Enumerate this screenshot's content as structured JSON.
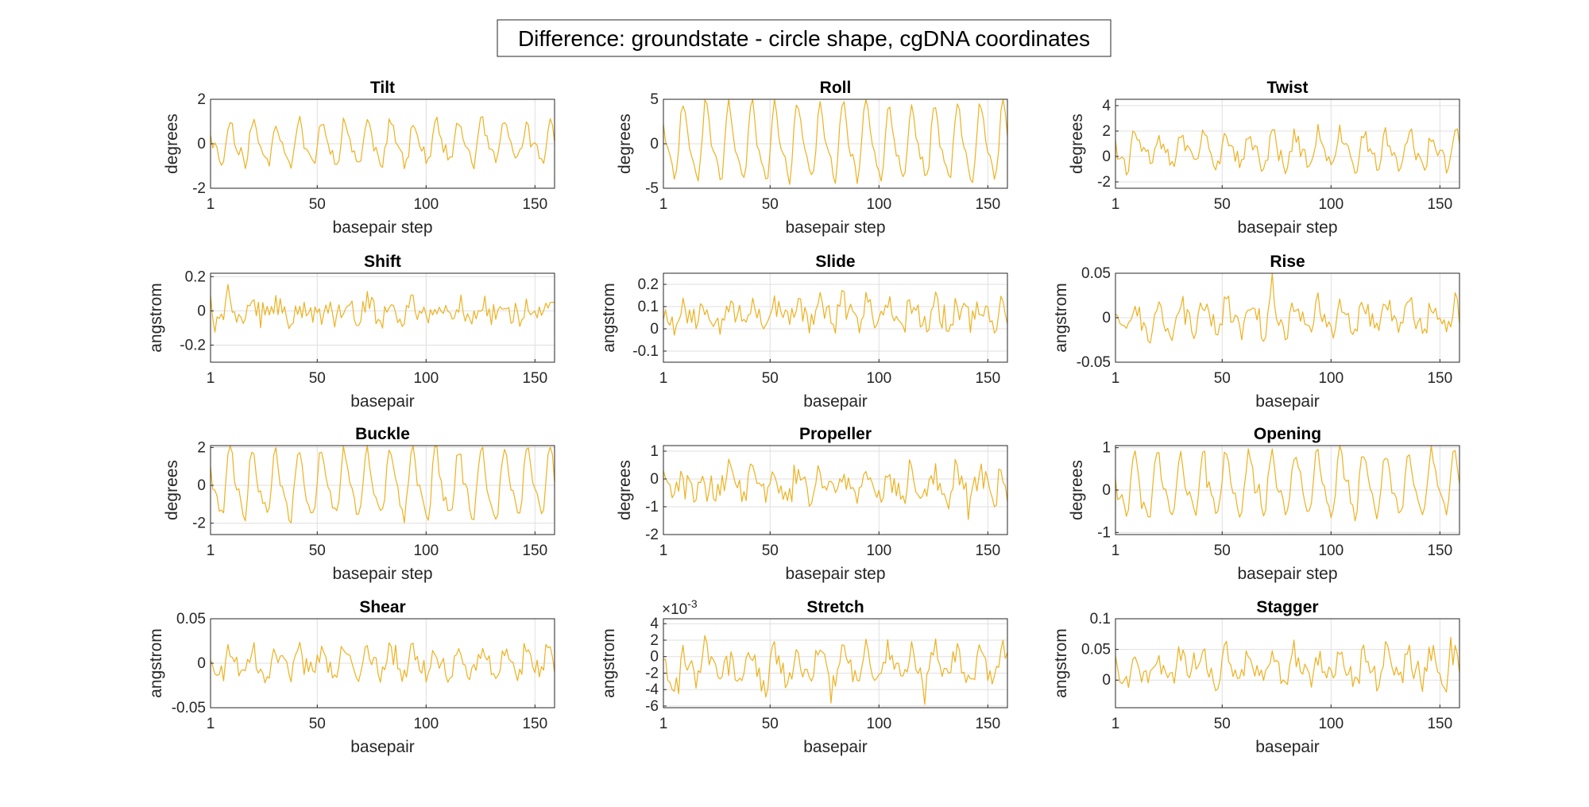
{
  "figure_title": "Difference: groundstate - circle shape, cgDNA coordinates",
  "colors": {
    "series": "#EDB120",
    "grid": "#dfdfdf",
    "axis": "#262626"
  },
  "chart_data": [
    {
      "type": "line",
      "title": "Tilt",
      "xlabel": "basepair step",
      "ylabel": "degrees",
      "xlim": [
        1,
        159
      ],
      "ylim": [
        -2,
        2
      ],
      "xticks": [
        "1",
        "50",
        "100",
        "150"
      ],
      "yticks": [
        "-2",
        "0",
        "2"
      ],
      "ytick_values": [
        -2,
        0,
        2
      ],
      "pattern": {
        "period": 10.5,
        "amplitude": 0.8,
        "noise": 0.3,
        "offset": 0.0,
        "seed": 11
      }
    },
    {
      "type": "line",
      "title": "Roll",
      "xlabel": "basepair step",
      "ylabel": "degrees",
      "xlim": [
        1,
        159
      ],
      "ylim": [
        -5,
        5
      ],
      "xticks": [
        "1",
        "50",
        "100",
        "150"
      ],
      "yticks": [
        "-5",
        "0",
        "5"
      ],
      "ytick_values": [
        -5,
        0,
        5
      ],
      "pattern": {
        "period": 10.5,
        "amplitude": 3.8,
        "noise": 0.6,
        "offset": 0.0,
        "seed": 23
      }
    },
    {
      "type": "line",
      "title": "Twist",
      "xlabel": "basepair step",
      "ylabel": "degrees",
      "xlim": [
        1,
        159
      ],
      "ylim": [
        -2.5,
        4.5
      ],
      "xticks": [
        "1",
        "50",
        "100",
        "150"
      ],
      "yticks": [
        "-2",
        "0",
        "2",
        "4"
      ],
      "ytick_values": [
        -2,
        0,
        2,
        4
      ],
      "pattern": {
        "period": 10.5,
        "amplitude": 1.2,
        "noise": 0.7,
        "offset": 0.4,
        "seed": 37
      }
    },
    {
      "type": "line",
      "title": "Shift",
      "xlabel": "basepair",
      "ylabel": "angstrom",
      "xlim": [
        1,
        159
      ],
      "ylim": [
        -0.3,
        0.22
      ],
      "xticks": [
        "1",
        "50",
        "100",
        "150"
      ],
      "yticks": [
        "-0.2",
        "0",
        "0.2"
      ],
      "ytick_values": [
        -0.2,
        0,
        0.2
      ],
      "pattern": {
        "period": 10.5,
        "amplitude": 0.04,
        "noise": 0.07,
        "offset": 0.0,
        "seed": 41
      }
    },
    {
      "type": "line",
      "title": "Slide",
      "xlabel": "basepair",
      "ylabel": "angstrom",
      "xlim": [
        1,
        159
      ],
      "ylim": [
        -0.15,
        0.25
      ],
      "xticks": [
        "1",
        "50",
        "100",
        "150"
      ],
      "yticks": [
        "-0.1",
        "0",
        "0.1",
        "0.2"
      ],
      "ytick_values": [
        -0.1,
        0,
        0.1,
        0.2
      ],
      "pattern": {
        "period": 10.5,
        "amplitude": 0.04,
        "noise": 0.06,
        "offset": 0.07,
        "seed": 53
      }
    },
    {
      "type": "line",
      "title": "Rise",
      "xlabel": "basepair",
      "ylabel": "angstrom",
      "xlim": [
        1,
        159
      ],
      "ylim": [
        -0.05,
        0.05
      ],
      "xticks": [
        "1",
        "50",
        "100",
        "150"
      ],
      "yticks": [
        "-0.05",
        "0",
        "0.05"
      ],
      "ytick_values": [
        -0.05,
        0,
        0.05
      ],
      "pattern": {
        "period": 10.5,
        "amplitude": 0.015,
        "noise": 0.012,
        "offset": 0.0,
        "seed": 67
      }
    },
    {
      "type": "line",
      "title": "Buckle",
      "xlabel": "basepair step",
      "ylabel": "degrees",
      "xlim": [
        1,
        159
      ],
      "ylim": [
        -2.6,
        2.1
      ],
      "xticks": [
        "1",
        "50",
        "100",
        "150"
      ],
      "yticks": [
        "-2",
        "0",
        "2"
      ],
      "ytick_values": [
        -2,
        0,
        2
      ],
      "pattern": {
        "period": 10.5,
        "amplitude": 1.6,
        "noise": 0.4,
        "offset": 0.0,
        "seed": 71
      }
    },
    {
      "type": "line",
      "title": "Propeller",
      "xlabel": "basepair step",
      "ylabel": "degrees",
      "xlim": [
        1,
        159
      ],
      "ylim": [
        -2,
        1.2
      ],
      "xticks": [
        "1",
        "50",
        "100",
        "150"
      ],
      "yticks": [
        "-2",
        "-1",
        "0",
        "1"
      ],
      "ytick_values": [
        -2,
        -1,
        0,
        1
      ],
      "pattern": {
        "period": 10.5,
        "amplitude": 0.4,
        "noise": 0.5,
        "offset": -0.2,
        "seed": 83
      }
    },
    {
      "type": "line",
      "title": "Opening",
      "xlabel": "basepair step",
      "ylabel": "degrees",
      "xlim": [
        1,
        159
      ],
      "ylim": [
        -1.05,
        1.05
      ],
      "xticks": [
        "1",
        "50",
        "100",
        "150"
      ],
      "yticks": [
        "-1",
        "0",
        "1"
      ],
      "ytick_values": [
        -1,
        0,
        1
      ],
      "pattern": {
        "period": 10.5,
        "amplitude": 0.65,
        "noise": 0.15,
        "offset": 0.1,
        "seed": 97
      }
    },
    {
      "type": "line",
      "title": "Shear",
      "xlabel": "basepair",
      "ylabel": "angstrom",
      "xlim": [
        1,
        159
      ],
      "ylim": [
        -0.05,
        0.05
      ],
      "xticks": [
        "1",
        "50",
        "100",
        "150"
      ],
      "yticks": [
        "-0.05",
        "0",
        "0.05"
      ],
      "ytick_values": [
        -0.05,
        0,
        0.05
      ],
      "pattern": {
        "period": 10.5,
        "amplitude": 0.012,
        "noise": 0.012,
        "offset": 0.0,
        "seed": 101
      }
    },
    {
      "type": "line",
      "title": "Stretch",
      "xlabel": "basepair",
      "ylabel": "angstrom",
      "exponent_label": "×10",
      "exponent": "-3",
      "xlim": [
        1,
        159
      ],
      "ylim": [
        -6.2,
        4.6
      ],
      "xticks": [
        "1",
        "50",
        "100",
        "150"
      ],
      "yticks": [
        "-6",
        "-4",
        "-2",
        "0",
        "2",
        "4"
      ],
      "ytick_values": [
        -6,
        -4,
        -2,
        0,
        2,
        4
      ],
      "pattern": {
        "period": 10.5,
        "amplitude": 1.8,
        "noise": 1.5,
        "offset": -1.2,
        "seed": 113
      }
    },
    {
      "type": "line",
      "title": "Stagger",
      "xlabel": "basepair",
      "ylabel": "angstrom",
      "xlim": [
        1,
        159
      ],
      "ylim": [
        -0.045,
        0.1
      ],
      "xticks": [
        "1",
        "50",
        "100",
        "150"
      ],
      "yticks": [
        "0",
        "0.05",
        "0.1"
      ],
      "ytick_values": [
        0,
        0.05,
        0.1
      ],
      "pattern": {
        "period": 10.5,
        "amplitude": 0.02,
        "noise": 0.02,
        "offset": 0.02,
        "seed": 127
      }
    }
  ]
}
